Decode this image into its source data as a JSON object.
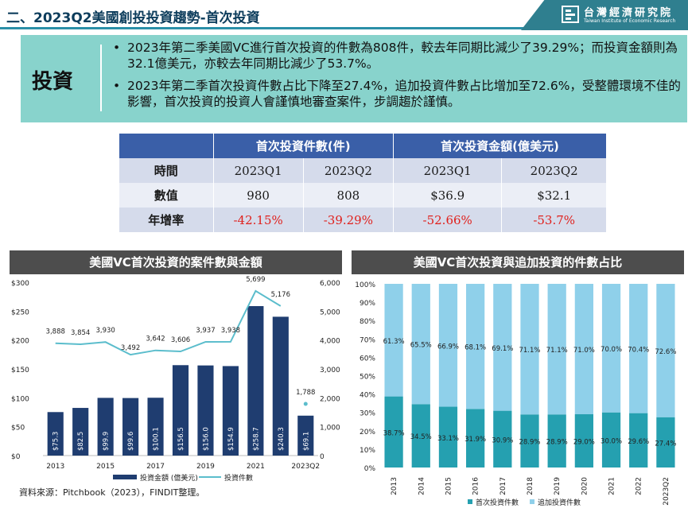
{
  "header": {
    "title": "二、2023Q2美國創投投資趨勢-首次投資",
    "brand_name": "台灣經濟研究院",
    "brand_sub": "Taiwan Institute of Economic Research"
  },
  "summary": {
    "label": "投資",
    "bullets": [
      "2023年第二季美國VC進行首次投資的件數為808件，較去年同期比減少了39.29%；而投資金額則為32.1億美元，亦較去年同期比減少了53.7%。",
      "2023年第二季首次投資件數占比下降至27.4%，追加投資件數占比增加至72.6%，受整體環境不佳的影響，首次投資的投資人會謹慎地審查案件，步調趨於謹慎。"
    ]
  },
  "table": {
    "col_group_1": "首次投資件數(件)",
    "col_group_2": "首次投資金額(億美元)",
    "rows": [
      {
        "label": "時間",
        "cells": [
          "2023Q1",
          "2023Q2",
          "2023Q1",
          "2023Q2"
        ]
      },
      {
        "label": "數值",
        "cells": [
          "980",
          "808",
          "$36.9",
          "$32.1"
        ]
      },
      {
        "label": "年增率",
        "cells": [
          "-42.15%",
          "-39.29%",
          "-52.66%",
          "-53.7%"
        ]
      }
    ]
  },
  "colors": {
    "bar_navy": "#1f3d70",
    "line_teal": "#5bbdcc",
    "first_invest": "#25a0b0",
    "follow_invest": "#8fd0ea"
  },
  "source": "資料來源：Pitchbook（2023），FINDIT整理。",
  "chart_data": [
    {
      "type": "bar",
      "title": "美國VC首次投資的案件數與金額",
      "categories": [
        "2013",
        "2014",
        "2015",
        "2016",
        "2017",
        "2018",
        "2019",
        "2020",
        "2021",
        "2022",
        "2023Q2"
      ],
      "x_tick_labels": [
        "2013",
        "2015",
        "2017",
        "2019",
        "2021",
        "2023Q2"
      ],
      "y_left_ticks": [
        "$300",
        "$250",
        "$200",
        "$150",
        "$100",
        "$50",
        "$0"
      ],
      "y_right_ticks": [
        "6,000",
        "5,000",
        "4,000",
        "3,000",
        "2,000",
        "1,000",
        "0"
      ],
      "ylim_left": [
        0,
        300
      ],
      "ylim_right": [
        0,
        6000
      ],
      "series": [
        {
          "name": "投資金額 (億美元)",
          "kind": "bar",
          "values": [
            75.3,
            82.5,
            99.9,
            99.6,
            100.1,
            156.5,
            156.0,
            154.9,
            258.7,
            240.3,
            69.1
          ],
          "labels": [
            "$75.3",
            "$82.5",
            "$99.9",
            "$99.6",
            "$100.1",
            "$156.5",
            "$156.0",
            "$154.9",
            "$258.7",
            "$240.3",
            "$69.1"
          ]
        },
        {
          "name": "投資件數",
          "kind": "line",
          "values": [
            3888,
            3854,
            3930,
            3492,
            3642,
            3606,
            3937,
            3938,
            5699,
            5176,
            1788
          ],
          "labels": [
            "3,888",
            "3,854",
            "3,930",
            "3,492",
            "3,642",
            "3,606",
            "3,937",
            "3,938",
            "5,699",
            "5,176",
            "1,788"
          ]
        }
      ]
    },
    {
      "type": "bar",
      "stacked": true,
      "title": "美國VC首次投資與追加投資的件數占比",
      "categories": [
        "2013",
        "2014",
        "2015",
        "2016",
        "2017",
        "2018",
        "2019",
        "2020",
        "2021",
        "2022",
        "2023Q2"
      ],
      "y_ticks": [
        "100%",
        "90%",
        "80%",
        "70%",
        "60%",
        "50%",
        "40%",
        "30%",
        "20%",
        "10%",
        "0%"
      ],
      "ylim": [
        0,
        100
      ],
      "series": [
        {
          "name": "首次投資件數",
          "values": [
            38.7,
            34.5,
            33.1,
            31.9,
            30.9,
            28.9,
            28.9,
            29.0,
            30.0,
            29.6,
            27.4
          ],
          "labels": [
            "38.7%",
            "34.5%",
            "33.1%",
            "31.9%",
            "30.9%",
            "28.9%",
            "28.9%",
            "29.0%",
            "30.0%",
            "29.6%",
            "27.4%"
          ]
        },
        {
          "name": "追加投資件數",
          "values": [
            61.3,
            65.5,
            66.9,
            68.1,
            69.1,
            71.1,
            71.1,
            71.0,
            70.0,
            70.4,
            72.6
          ],
          "labels": [
            "61.3%",
            "65.5%",
            "66.9%",
            "68.1%",
            "69.1%",
            "71.1%",
            "71.1%",
            "71.0%",
            "70.0%",
            "70.4%",
            "72.6%"
          ]
        }
      ]
    }
  ]
}
